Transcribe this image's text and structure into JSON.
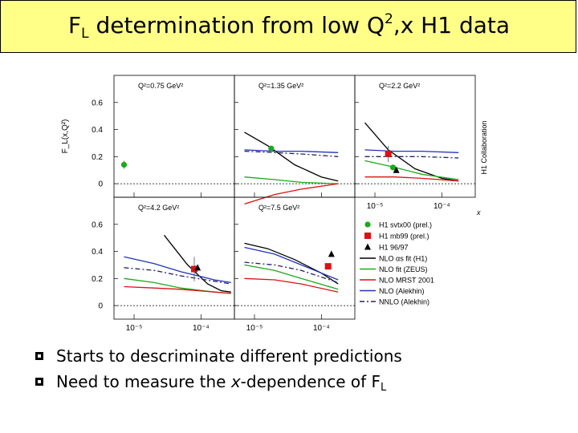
{
  "title": {
    "prefix": "F",
    "sub": "L",
    "mid": " determination from low Q",
    "sup": "2",
    "rest": ",x H1 data"
  },
  "bullets": [
    {
      "text": "Starts to descriminate different predictions"
    },
    {
      "text_a": "Need to measure the ",
      "italic": "x",
      "text_b": "-dependence of F",
      "sub": "L"
    }
  ],
  "chart_data": {
    "type": "scatter",
    "y_axis_label": "F_L(x,Q²)",
    "x_axis_label": "x",
    "x_range": [
      -5.3,
      -3.5
    ],
    "y_range": [
      -0.1,
      0.8
    ],
    "y_ticks": [
      {
        "v": 0,
        "label": "0"
      },
      {
        "v": 0.2,
        "label": "0.2"
      },
      {
        "v": 0.4,
        "label": "0.4"
      },
      {
        "v": 0.6,
        "label": "0.6"
      }
    ],
    "x_ticks": [
      {
        "v": -5,
        "label": "10⁻⁵"
      },
      {
        "v": -4,
        "label": "10⁻⁴"
      }
    ],
    "side_label": "H1 Collaboration",
    "panels": [
      {
        "label": "Q²=0.75 GeV²",
        "points": [
          {
            "series": "H1 svtx00 (prel.)",
            "x": -5.15,
            "y": 0.14,
            "err": 0.03
          }
        ],
        "curves": {}
      },
      {
        "label": "Q²=1.35 GeV²",
        "points": [
          {
            "series": "H1 svtx00 (prel.)",
            "x": -4.75,
            "y": 0.26,
            "err": 0.02
          }
        ],
        "curves": {
          "nlo_as_fit": [
            [
              -5.15,
              0.38
            ],
            [
              -4.8,
              0.28
            ],
            [
              -4.4,
              0.14
            ],
            [
              -4.0,
              0.05
            ],
            [
              -3.75,
              0.02
            ]
          ],
          "nlo_zeus": [
            [
              -5.15,
              0.05
            ],
            [
              -4.7,
              0.03
            ],
            [
              -4.3,
              0.01
            ],
            [
              -3.75,
              0.0
            ]
          ],
          "nlo_mrst": [
            [
              -5.15,
              -0.15
            ],
            [
              -4.7,
              -0.08
            ],
            [
              -4.3,
              -0.04
            ],
            [
              -3.75,
              0.0
            ]
          ],
          "nlo_alekhin": [
            [
              -5.15,
              0.25
            ],
            [
              -4.7,
              0.24
            ],
            [
              -4.3,
              0.24
            ],
            [
              -3.75,
              0.23
            ]
          ],
          "nnlo_alekhin": [
            [
              -5.15,
              0.24
            ],
            [
              -4.7,
              0.23
            ],
            [
              -4.3,
              0.22
            ],
            [
              -3.75,
              0.2
            ]
          ]
        }
      },
      {
        "label": "Q²=2.2 GeV²",
        "points": [
          {
            "series": "H1 mb99 (prel.)",
            "x": -4.8,
            "y": 0.22,
            "err": 0.06
          },
          {
            "series": "H1 svtx00 (prel.)",
            "x": -4.73,
            "y": 0.12,
            "err": 0.02
          },
          {
            "series": "H1 96/97",
            "x": -4.68,
            "y": 0.1,
            "err": 0.02
          }
        ],
        "curves": {
          "nlo_as_fit": [
            [
              -5.15,
              0.45
            ],
            [
              -4.8,
              0.25
            ],
            [
              -4.4,
              0.11
            ],
            [
              -4.0,
              0.04
            ],
            [
              -3.75,
              0.02
            ]
          ],
          "nlo_zeus": [
            [
              -5.15,
              0.17
            ],
            [
              -4.7,
              0.12
            ],
            [
              -4.3,
              0.07
            ],
            [
              -3.75,
              0.03
            ]
          ],
          "nlo_mrst": [
            [
              -5.15,
              0.05
            ],
            [
              -4.7,
              0.05
            ],
            [
              -4.3,
              0.04
            ],
            [
              -3.75,
              0.02
            ]
          ],
          "nlo_alekhin": [
            [
              -5.15,
              0.25
            ],
            [
              -4.7,
              0.24
            ],
            [
              -4.3,
              0.24
            ],
            [
              -3.75,
              0.23
            ]
          ],
          "nnlo_alekhin": [
            [
              -5.15,
              0.2
            ],
            [
              -4.7,
              0.2
            ],
            [
              -4.3,
              0.2
            ],
            [
              -3.75,
              0.19
            ]
          ]
        }
      },
      {
        "label": "Q²=4.2 GeV²",
        "points": [
          {
            "series": "H1 mb99 (prel.)",
            "x": -4.1,
            "y": 0.27,
            "err": 0.09
          },
          {
            "series": "H1 96/97",
            "x": -4.05,
            "y": 0.28,
            "err": 0.02
          }
        ],
        "curves": {
          "nlo_as_fit": [
            [
              -4.55,
              0.52
            ],
            [
              -4.2,
              0.3
            ],
            [
              -3.9,
              0.16
            ],
            [
              -3.7,
              0.11
            ],
            [
              -3.55,
              0.1
            ]
          ],
          "nlo_zeus": [
            [
              -5.15,
              0.2
            ],
            [
              -4.7,
              0.17
            ],
            [
              -4.3,
              0.13
            ],
            [
              -3.8,
              0.1
            ],
            [
              -3.55,
              0.09
            ]
          ],
          "nlo_mrst": [
            [
              -5.15,
              0.14
            ],
            [
              -4.7,
              0.13
            ],
            [
              -4.3,
              0.12
            ],
            [
              -3.8,
              0.1
            ],
            [
              -3.55,
              0.09
            ]
          ],
          "nlo_alekhin": [
            [
              -5.15,
              0.36
            ],
            [
              -4.7,
              0.31
            ],
            [
              -4.3,
              0.25
            ],
            [
              -3.8,
              0.19
            ],
            [
              -3.55,
              0.17
            ]
          ],
          "nnlo_alekhin": [
            [
              -5.15,
              0.28
            ],
            [
              -4.7,
              0.26
            ],
            [
              -4.3,
              0.22
            ],
            [
              -3.8,
              0.18
            ],
            [
              -3.55,
              0.16
            ]
          ]
        }
      },
      {
        "label": "Q²=7.5 GeV²",
        "points": [
          {
            "series": "H1 mb99 (prel.)",
            "x": -3.9,
            "y": 0.29,
            "err": 0.02
          },
          {
            "series": "H1 96/97",
            "x": -3.85,
            "y": 0.38,
            "err": 0.02
          }
        ],
        "curves": {
          "nlo_as_fit": [
            [
              -5.15,
              0.46
            ],
            [
              -4.8,
              0.42
            ],
            [
              -4.4,
              0.34
            ],
            [
              -4.0,
              0.24
            ],
            [
              -3.75,
              0.16
            ]
          ],
          "nlo_zeus": [
            [
              -5.15,
              0.3
            ],
            [
              -4.7,
              0.26
            ],
            [
              -4.3,
              0.2
            ],
            [
              -3.75,
              0.12
            ]
          ],
          "nlo_mrst": [
            [
              -5.15,
              0.2
            ],
            [
              -4.7,
              0.19
            ],
            [
              -4.3,
              0.16
            ],
            [
              -3.75,
              0.1
            ]
          ],
          "nlo_alekhin": [
            [
              -5.15,
              0.43
            ],
            [
              -4.7,
              0.38
            ],
            [
              -4.3,
              0.3
            ],
            [
              -3.75,
              0.19
            ]
          ],
          "nnlo_alekhin": [
            [
              -5.15,
              0.32
            ],
            [
              -4.7,
              0.3
            ],
            [
              -4.3,
              0.26
            ],
            [
              -3.75,
              0.17
            ]
          ]
        }
      }
    ],
    "legend": {
      "markers": [
        {
          "name": "H1 svtx00 (prel.)",
          "marker": "circle",
          "color": "#1aaa1a"
        },
        {
          "name": "H1 mb99 (prel.)",
          "marker": "square",
          "color": "#dd1111"
        },
        {
          "name": "H1 96/97",
          "marker": "triangle",
          "color": "#000000"
        }
      ],
      "lines": [
        {
          "key": "nlo_as_fit",
          "name": "NLO αs fit (H1)",
          "color": "#000000",
          "dash": ""
        },
        {
          "key": "nlo_zeus",
          "name": "NLO fit (ZEUS)",
          "color": "#1aaa1a",
          "dash": ""
        },
        {
          "key": "nlo_mrst",
          "name": "NLO MRST 2001",
          "color": "#dd1111",
          "dash": ""
        },
        {
          "key": "nlo_alekhin",
          "name": "NLO (Alekhin)",
          "color": "#2233bb",
          "dash": ""
        },
        {
          "key": "nnlo_alekhin",
          "name": "NNLO (Alekhin)",
          "color": "#222266",
          "dash": "6,3,2,3"
        }
      ]
    }
  }
}
